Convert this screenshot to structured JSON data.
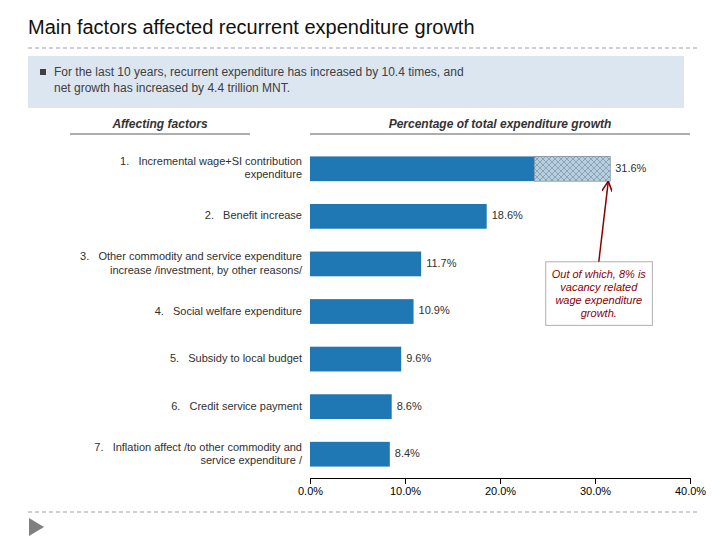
{
  "chart_data": {
    "type": "bar",
    "orientation": "horizontal",
    "title": "Main factors affected recurrent expenditure growth",
    "subtitle": "For the last 10 years, recurrent expenditure has increased by 10.4 times, and\nnet growth has increased by 4.4 trillion MNT.",
    "ylabel": "Affecting factors",
    "xlabel": "Percentage of total expenditure growth",
    "categories": [
      "1.   Incremental wage+SI contribution\n      expenditure",
      "2.   Benefit increase",
      "3.   Other commodity and service expenditure\n      increase /investment, by other reasons/",
      "4.   Social welfare expenditure",
      "5.   Subsidy to local budget",
      "6.   Credit service payment",
      "7.   Inflation affect /to other commodity and\n      service expenditure /"
    ],
    "values": [
      31.6,
      18.6,
      11.7,
      10.9,
      9.6,
      8.6,
      8.4
    ],
    "value_labels": [
      "31.6%",
      "18.6%",
      "11.7%",
      "10.9%",
      "9.6%",
      "8.6%",
      "8.4%"
    ],
    "data_labels": true,
    "hatched_portion": 8.0,
    "xlim": [
      0,
      40
    ],
    "xticks": [
      {
        "value": 0,
        "label": "0.0%"
      },
      {
        "value": 10,
        "label": "10.0%"
      },
      {
        "value": 20,
        "label": "20.0%"
      },
      {
        "value": 30,
        "label": "30.0%"
      },
      {
        "value": 40,
        "label": "40.0%"
      }
    ],
    "annotation": "Out of which, 8% is\nvacancy related\nwage expenditure\ngrowth."
  }
}
